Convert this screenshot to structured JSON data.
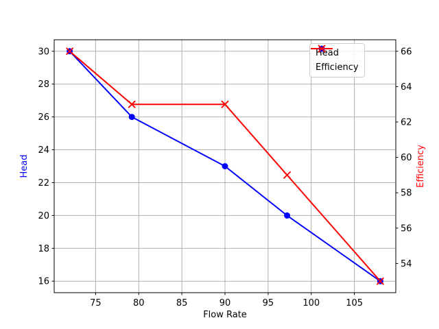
{
  "chart_data": {
    "type": "line",
    "title": "",
    "xlabel": "Flow Rate",
    "ylabel_left": "Head",
    "ylabel_right": "Efficiency",
    "ylabel_left_color": "#0000ff",
    "ylabel_right_color": "#ff0000",
    "x": [
      72,
      79.2,
      90,
      97.2,
      108
    ],
    "series": [
      {
        "name": "Head",
        "axis": "left",
        "color": "#0000ff",
        "marker": "circle",
        "values": [
          30,
          26,
          23,
          20,
          16
        ]
      },
      {
        "name": "Efficiency",
        "axis": "right",
        "color": "#ff0000",
        "marker": "x",
        "values": [
          66,
          63,
          63,
          59,
          53
        ]
      }
    ],
    "xlim": [
      70.2,
      109.8
    ],
    "ylim_left": [
      15.3,
      30.7
    ],
    "ylim_right": [
      52.35,
      66.65
    ],
    "xticks": [
      75,
      80,
      85,
      90,
      95,
      100,
      105
    ],
    "yticks_left": [
      16,
      18,
      20,
      22,
      24,
      26,
      28,
      30
    ],
    "yticks_right": [
      54,
      56,
      58,
      60,
      62,
      64,
      66
    ],
    "grid": true,
    "grid_color": "#b0b0b0",
    "spine_color": "#000000",
    "tick_label_color": "#000000",
    "background": "#ffffff",
    "legend": {
      "location": "upper right",
      "entries": [
        "Head",
        "Efficiency"
      ]
    }
  }
}
